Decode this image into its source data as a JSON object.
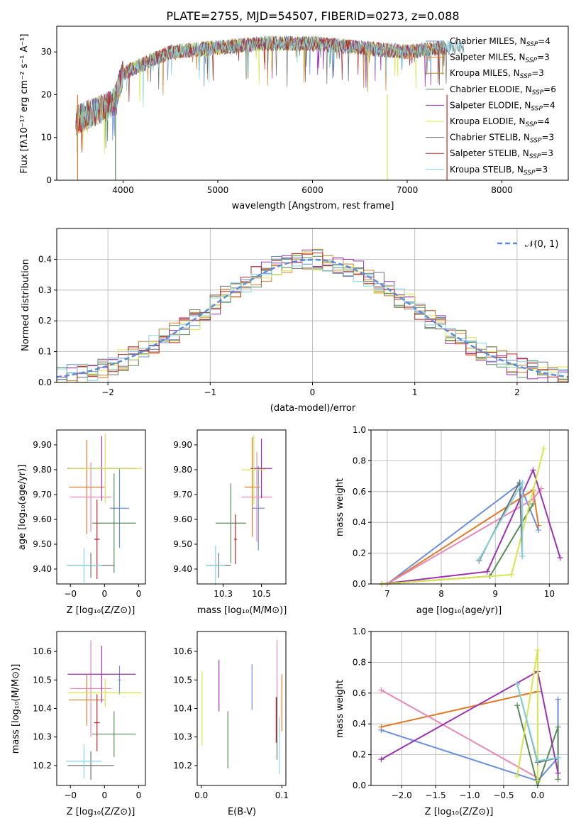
{
  "figure_title": "PLATE=2755, MJD=54507, FIBERID=0273, z=0.088",
  "legend_entries": [
    {
      "label": "Chabrier MILES",
      "n": "4",
      "color": "#6a8fdc"
    },
    {
      "label": "Salpeter MILES",
      "n": "3",
      "color": "#e07b28"
    },
    {
      "label": "Kroupa MILES",
      "n": "3",
      "color": "#b3862b"
    },
    {
      "label": "Chabrier ELODIE",
      "n": "6",
      "color": "#5a8a5a"
    },
    {
      "label": "Salpeter ELODIE",
      "n": "4",
      "color": "#9c32b0"
    },
    {
      "label": "Kroupa ELODIE",
      "n": "4",
      "color": "#d6e64a"
    },
    {
      "label": "Chabrier STELIB",
      "n": "3",
      "color": "#707070"
    },
    {
      "label": "Salpeter STELIB",
      "n": "3",
      "color": "#b8282b"
    },
    {
      "label": "Kroupa STELIB",
      "n": "3",
      "color": "#86d4e0"
    }
  ],
  "chart_data": [
    {
      "id": "spectrum",
      "type": "line",
      "xlabel": "wavelength [Angstrom, rest frame]",
      "ylabel": "Flux [fλ10⁻¹⁷ erg cm⁻² s⁻¹ A⁻¹]",
      "xlim": [
        3300,
        8700
      ],
      "ylim": [
        0,
        36
      ],
      "xticks": [
        4000,
        5000,
        6000,
        7000,
        8000
      ],
      "yticks": [
        0,
        10,
        20,
        30
      ],
      "grid": false,
      "legend": "top-right",
      "continuum_knots": [
        [
          3500,
          14
        ],
        [
          3700,
          16
        ],
        [
          3900,
          18
        ],
        [
          4000,
          25
        ],
        [
          4200,
          27
        ],
        [
          4500,
          30
        ],
        [
          5000,
          31
        ],
        [
          5500,
          32
        ],
        [
          6000,
          32
        ],
        [
          6500,
          31
        ],
        [
          7000,
          30
        ],
        [
          7400,
          31
        ],
        [
          7600,
          31
        ]
      ],
      "dropouts": [
        [
          3520,
          0
        ],
        [
          3920,
          0
        ],
        [
          6790,
          0
        ],
        [
          7420,
          0
        ]
      ]
    },
    {
      "id": "residual-histogram",
      "type": "histogram",
      "xlabel": "(data-model)/error",
      "ylabel": "Normed distribution",
      "xlim": [
        -2.5,
        2.5
      ],
      "ylim": [
        0,
        0.5
      ],
      "xticks": [
        -2,
        -1,
        0,
        1,
        2
      ],
      "yticks": [
        0,
        0.1,
        0.2,
        0.3,
        0.4
      ],
      "grid": true,
      "legend": "top-right",
      "reference_curve": {
        "label": "𝒩(0, 1)",
        "mean": 0,
        "sigma": 1,
        "color": "#5b8bd9"
      },
      "bin_width": 0.1
    },
    {
      "id": "age-vs-Z",
      "type": "errorbar",
      "xlabel": "Z [log₁₀(Z/Z⊙)]",
      "ylabel": "age  [log₁₀(age/yr)]",
      "xlim": [
        -0.35,
        0.3
      ],
      "ylim": [
        9.34,
        9.96
      ],
      "xticks": [
        -0.25,
        0.0,
        0.25
      ],
      "yticks": [
        9.4,
        9.5,
        9.6,
        9.7,
        9.8,
        9.9
      ],
      "points": [
        {
          "x": 0.11,
          "y": 9.645,
          "xerr": 0.07,
          "yerr": 0.16,
          "color": "#6a8fdc"
        },
        {
          "x": -0.13,
          "y": 9.73,
          "xerr": 0.13,
          "yerr": 0.19,
          "color": "#e07b28"
        },
        {
          "x": -0.1,
          "y": 9.69,
          "xerr": 0.15,
          "yerr": 0.14,
          "color": "#e887b8"
        },
        {
          "x": 0.07,
          "y": 9.585,
          "xerr": 0.16,
          "yerr": 0.2,
          "color": "#5a8a5a"
        },
        {
          "x": -0.02,
          "y": 9.805,
          "xerr": 0.25,
          "yerr": 0.13,
          "color": "#9c32b0"
        },
        {
          "x": 0.005,
          "y": 9.805,
          "xerr": 0.27,
          "yerr": 0.14,
          "color": "#d6e64a"
        },
        {
          "x": -0.1,
          "y": 9.415,
          "xerr": 0.17,
          "yerr": 0.05,
          "color": "#707070"
        },
        {
          "x": -0.055,
          "y": 9.52,
          "xerr": 0.02,
          "yerr": 0.16,
          "color": "#b8282b"
        },
        {
          "x": -0.15,
          "y": 9.415,
          "xerr": 0.13,
          "yerr": 0.07,
          "color": "#86d4e0"
        }
      ]
    },
    {
      "id": "age-vs-mass",
      "type": "errorbar",
      "xlabel": "mass [log₁₀(M/M⊙)]",
      "ylabel": "",
      "xlim": [
        10.08,
        10.66
      ],
      "ylim": [
        9.34,
        9.96
      ],
      "xticks": [
        10.25,
        10.5
      ],
      "yticks": [
        9.4,
        9.5,
        9.6,
        9.7,
        9.8,
        9.9
      ],
      "points": [
        {
          "x": 10.48,
          "y": 9.645,
          "xerr": 0.04,
          "yerr": 0.17,
          "color": "#6a8fdc"
        },
        {
          "x": 10.44,
          "y": 9.73,
          "xerr": 0.05,
          "yerr": 0.2,
          "color": "#e07b28"
        },
        {
          "x": 10.47,
          "y": 9.69,
          "xerr": 0.1,
          "yerr": 0.18,
          "color": "#e887b8"
        },
        {
          "x": 10.3,
          "y": 9.585,
          "xerr": 0.1,
          "yerr": 0.16,
          "color": "#5a8a5a"
        },
        {
          "x": 10.5,
          "y": 9.805,
          "xerr": 0.07,
          "yerr": 0.12,
          "color": "#9c32b0"
        },
        {
          "x": 10.45,
          "y": 9.8,
          "xerr": 0.08,
          "yerr": 0.14,
          "color": "#d6e64a"
        },
        {
          "x": 10.22,
          "y": 9.415,
          "xerr": 0.08,
          "yerr": 0.05,
          "color": "#707070"
        },
        {
          "x": 10.33,
          "y": 9.52,
          "xerr": 0.01,
          "yerr": 0.1,
          "color": "#b8282b"
        },
        {
          "x": 10.2,
          "y": 9.415,
          "xerr": 0.06,
          "yerr": 0.08,
          "color": "#86d4e0"
        }
      ]
    },
    {
      "id": "massweight-vs-age",
      "type": "line",
      "xlabel": "age  [log₁₀(age/yr)]",
      "ylabel": "mass weight",
      "xlim": [
        6.7,
        10.35
      ],
      "ylim": [
        0,
        1
      ],
      "xticks": [
        7,
        8,
        9,
        10
      ],
      "yticks": [
        0.0,
        0.2,
        0.4,
        0.6,
        0.8,
        1.0
      ],
      "grid": true,
      "series": [
        {
          "color": "#6a8fdc",
          "x": [
            7.0,
            9.45,
            9.8
          ],
          "y": [
            0.0,
            0.65,
            0.35
          ]
        },
        {
          "color": "#e07b28",
          "x": [
            7.0,
            9.7,
            9.8
          ],
          "y": [
            0.0,
            0.61,
            0.38
          ]
        },
        {
          "color": "#e887b8",
          "x": [
            7.0,
            9.7,
            9.85
          ],
          "y": [
            0.0,
            0.55,
            0.62
          ]
        },
        {
          "color": "#5a8a5a",
          "x": [
            6.9,
            8.9,
            9.7
          ],
          "y": [
            0.0,
            0.05,
            0.52
          ]
        },
        {
          "color": "#9c32b0",
          "x": [
            6.9,
            8.85,
            9.7,
            10.2
          ],
          "y": [
            0.0,
            0.08,
            0.74,
            0.17
          ]
        },
        {
          "color": "#d6e64a",
          "x": [
            6.9,
            9.3,
            9.9
          ],
          "y": [
            0.0,
            0.06,
            0.88
          ]
        },
        {
          "color": "#707070",
          "x": [
            8.7,
            9.45,
            9.5
          ],
          "y": [
            0.15,
            0.66,
            0.18
          ]
        },
        {
          "color": "#86d4e0",
          "x": [
            8.7,
            9.5,
            9.5
          ],
          "y": [
            0.16,
            0.66,
            0.18
          ]
        }
      ]
    },
    {
      "id": "mass-vs-Z",
      "type": "errorbar",
      "xlabel": "Z [log₁₀(Z/Z⊙)]",
      "ylabel": "mass [log₁₀(M/M⊙)]",
      "xlim": [
        -0.35,
        0.3
      ],
      "ylim": [
        10.13,
        10.67
      ],
      "xticks": [
        -0.25,
        0.0,
        0.25
      ],
      "yticks": [
        10.2,
        10.3,
        10.4,
        10.5,
        10.6
      ],
      "points": [
        {
          "x": 0.11,
          "y": 10.5,
          "xerr": 0.01,
          "yerr": 0.05,
          "color": "#6a8fdc"
        },
        {
          "x": -0.13,
          "y": 10.43,
          "xerr": 0.13,
          "yerr": 0.09,
          "color": "#e07b28"
        },
        {
          "x": -0.1,
          "y": 10.47,
          "xerr": 0.15,
          "yerr": 0.17,
          "color": "#e887b8"
        },
        {
          "x": 0.07,
          "y": 10.31,
          "xerr": 0.16,
          "yerr": 0.08,
          "color": "#5a8a5a"
        },
        {
          "x": -0.02,
          "y": 10.52,
          "xerr": 0.25,
          "yerr": 0.1,
          "color": "#9c32b0"
        },
        {
          "x": 0.005,
          "y": 10.455,
          "xerr": 0.27,
          "yerr": 0.05,
          "color": "#d6e64a"
        },
        {
          "x": -0.1,
          "y": 10.2,
          "xerr": 0.17,
          "yerr": 0.05,
          "color": "#707070"
        },
        {
          "x": -0.055,
          "y": 10.35,
          "xerr": 0.02,
          "yerr": 0.1,
          "color": "#b8282b"
        },
        {
          "x": -0.15,
          "y": 10.215,
          "xerr": 0.13,
          "yerr": 0.06,
          "color": "#86d4e0"
        }
      ]
    },
    {
      "id": "mass-vs-EBV",
      "type": "errorbar",
      "xlabel": "E(B-V)",
      "ylabel": "",
      "xlim": [
        -0.005,
        0.105
      ],
      "ylim": [
        10.13,
        10.67
      ],
      "xticks": [
        0.0,
        0.1
      ],
      "yticks": [
        10.2,
        10.3,
        10.4,
        10.5,
        10.6
      ],
      "points": [
        {
          "x": 0.063,
          "y": 10.475,
          "xerr": 0,
          "yerr": 0.08,
          "color": "#6a8fdc"
        },
        {
          "x": 0.1,
          "y": 10.42,
          "xerr": 0,
          "yerr": 0.1,
          "color": "#e07b28"
        },
        {
          "x": 0.094,
          "y": 10.51,
          "xerr": 0,
          "yerr": 0.13,
          "color": "#e887b8"
        },
        {
          "x": 0.033,
          "y": 10.29,
          "xerr": 0,
          "yerr": 0.1,
          "color": "#5a8a5a"
        },
        {
          "x": 0.022,
          "y": 10.48,
          "xerr": 0,
          "yerr": 0.09,
          "color": "#9c32b0"
        },
        {
          "x": 0.001,
          "y": 10.4,
          "xerr": 0,
          "yerr": 0.13,
          "color": "#d6e64a"
        },
        {
          "x": 0.094,
          "y": 10.33,
          "xerr": 0,
          "yerr": 0.11,
          "color": "#707070"
        },
        {
          "x": 0.093,
          "y": 10.36,
          "xerr": 0,
          "yerr": 0.08,
          "color": "#b8282b"
        },
        {
          "x": 0.097,
          "y": 10.27,
          "xerr": 0,
          "yerr": 0.1,
          "color": "#86d4e0"
        }
      ]
    },
    {
      "id": "massweight-vs-Z",
      "type": "line",
      "xlabel": "Z [log₁₀(Z/Z⊙)]",
      "ylabel": "mass weight",
      "xlim": [
        -2.45,
        0.45
      ],
      "ylim": [
        0,
        1
      ],
      "xticks": [
        -2.0,
        -1.5,
        -1.0,
        -0.5,
        0.0
      ],
      "yticks": [
        0.0,
        0.2,
        0.4,
        0.6,
        0.8,
        1.0
      ],
      "grid": true,
      "series": [
        {
          "color": "#6a8fdc",
          "x": [
            -2.3,
            0.0,
            0.3,
            0.3
          ],
          "y": [
            0.36,
            0.03,
            0.18,
            0.56
          ]
        },
        {
          "color": "#e07b28",
          "x": [
            -2.3,
            0.0
          ],
          "y": [
            0.38,
            0.61
          ]
        },
        {
          "color": "#e887b8",
          "x": [
            -2.3,
            0.0
          ],
          "y": [
            0.62,
            0.05
          ]
        },
        {
          "color": "#5a8a5a",
          "x": [
            -0.3,
            0.0,
            0.3,
            0.3
          ],
          "y": [
            0.52,
            0.0,
            0.38,
            0.04
          ]
        },
        {
          "color": "#9c32b0",
          "x": [
            -2.3,
            0.0,
            0.3
          ],
          "y": [
            0.17,
            0.74,
            0.08
          ]
        },
        {
          "color": "#d6e64a",
          "x": [
            -0.3,
            0.0,
            0.0
          ],
          "y": [
            0.06,
            0.88,
            0.03
          ]
        },
        {
          "color": "#707070",
          "x": [
            -0.3,
            0.0,
            0.3
          ],
          "y": [
            0.66,
            0.15,
            0.18
          ]
        },
        {
          "color": "#86d4e0",
          "x": [
            -0.3,
            0.0,
            0.3
          ],
          "y": [
            0.66,
            0.16,
            0.18
          ]
        }
      ]
    }
  ]
}
